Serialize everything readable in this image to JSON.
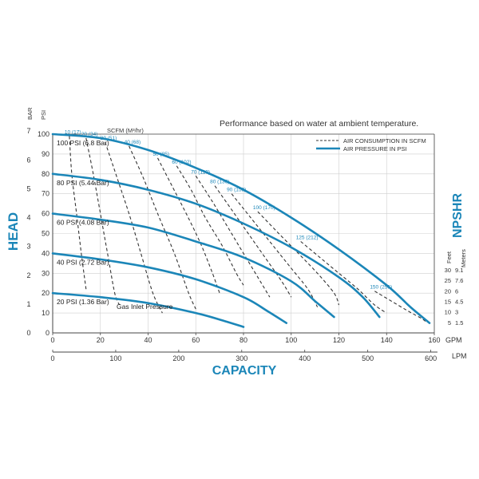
{
  "chart_data": {
    "type": "line",
    "note": "Performance based on water at ambient temperature.",
    "xlabel": "CAPACITY",
    "ylabel_left": "HEAD",
    "ylabel_right": "NPSHR",
    "scfm_label": "SCFM (M³/hr)",
    "x_gpm": {
      "unit": "GPM",
      "ticks": [
        "0",
        "20",
        "40",
        "60",
        "80",
        "100",
        "120",
        "140",
        "160"
      ],
      "range": [
        0,
        160
      ]
    },
    "x_lpm": {
      "unit": "LPM",
      "ticks": [
        "0",
        "100",
        "200",
        "300",
        "400",
        "500",
        "600"
      ],
      "range": [
        0,
        605.6
      ]
    },
    "y_psi": {
      "unit": "PSI",
      "ticks": [
        "0",
        "10",
        "20",
        "30",
        "40",
        "50",
        "60",
        "70",
        "80",
        "90",
        "100"
      ],
      "range": [
        0,
        100
      ]
    },
    "y_bar": {
      "unit": "BAR",
      "ticks": [
        "0",
        "1",
        "2",
        "3",
        "4",
        "5",
        "6",
        "7"
      ],
      "range": [
        0,
        6.895
      ]
    },
    "npshr": {
      "feet_label": "Feet",
      "meters_label": "Meters",
      "feet": [
        "5",
        "10",
        "15",
        "20",
        "25",
        "30"
      ],
      "meters": [
        "1.5",
        "3",
        "4.5",
        "6",
        "7.6",
        "9.1"
      ],
      "feet_range": [
        0,
        33
      ]
    },
    "legend": [
      {
        "label": "AIR CONSUMPTION IN SCFM",
        "style": "dashed"
      },
      {
        "label": "AIR PRESSURE IN PSI",
        "style": "solid"
      }
    ],
    "legend_position": "top-right",
    "series": [
      {
        "name": "100 PSI (6.8 Bar)",
        "x": [
          0,
          20,
          40,
          60,
          80,
          100,
          120,
          140,
          150,
          158
        ],
        "y": [
          100,
          98,
          92,
          83,
          72,
          58,
          42,
          24,
          13,
          5
        ]
      },
      {
        "name": "80 PSI (5.44 Bar)",
        "x": [
          0,
          20,
          40,
          60,
          80,
          100,
          120,
          130,
          137
        ],
        "y": [
          80,
          77,
          72,
          65,
          55,
          43,
          28,
          18,
          8
        ]
      },
      {
        "name": "60 PSI (4.08 Bar)",
        "x": [
          0,
          20,
          40,
          60,
          80,
          100,
          110,
          118
        ],
        "y": [
          60,
          57,
          53,
          46,
          38,
          26,
          16,
          8
        ]
      },
      {
        "name": "40 PSI (2.72 Bar)",
        "x": [
          0,
          20,
          40,
          60,
          80,
          90,
          98
        ],
        "y": [
          40,
          37,
          33,
          27,
          18,
          11,
          5
        ]
      },
      {
        "name": "20 PSI (1.36 Bar)",
        "x": [
          0,
          20,
          40,
          60,
          72,
          80
        ],
        "y": [
          20,
          18,
          15,
          10,
          6,
          3
        ]
      }
    ],
    "gas_inlet_label": "Gas Inlet Pressure",
    "air_consumption": [
      {
        "label": "10 (17)",
        "x": [
          7,
          8,
          10,
          12,
          14
        ],
        "y": [
          99,
          80,
          60,
          40,
          22
        ]
      },
      {
        "label": "20 (34)",
        "x": [
          14,
          17,
          20,
          23,
          26,
          28
        ],
        "y": [
          98,
          80,
          60,
          40,
          20,
          14
        ]
      },
      {
        "label": "30 (51)",
        "x": [
          22,
          27,
          32,
          37,
          42,
          46
        ],
        "y": [
          96,
          78,
          60,
          40,
          20,
          10
        ]
      },
      {
        "label": "40 (68)",
        "x": [
          32,
          38,
          44,
          51,
          57,
          60
        ],
        "y": [
          94,
          78,
          60,
          40,
          20,
          12
        ]
      },
      {
        "label": "50 (85)",
        "x": [
          44,
          50,
          56,
          62,
          67,
          70
        ],
        "y": [
          88,
          74,
          60,
          45,
          30,
          20
        ]
      },
      {
        "label": "60 (102)",
        "x": [
          52,
          58,
          64,
          71,
          77,
          80
        ],
        "y": [
          84,
          72,
          58,
          44,
          30,
          24
        ]
      },
      {
        "label": "70 (119)",
        "x": [
          60,
          67,
          74,
          81,
          88,
          91
        ],
        "y": [
          79,
          66,
          52,
          38,
          24,
          18
        ]
      },
      {
        "label": "80 (136)",
        "x": [
          68,
          75,
          82,
          89,
          96,
          100
        ],
        "y": [
          74,
          62,
          50,
          38,
          26,
          18
        ]
      },
      {
        "label": "90 (153)",
        "x": [
          75,
          83,
          91,
          99,
          107,
          111
        ],
        "y": [
          70,
          58,
          46,
          34,
          22,
          13
        ]
      },
      {
        "label": "100 (170)",
        "x": [
          86,
          94,
          103,
          111,
          118,
          120
        ],
        "y": [
          61,
          51,
          40,
          30,
          20,
          14
        ]
      },
      {
        "label": "125 (212)",
        "x": [
          104,
          112,
          120,
          128,
          135,
          140
        ],
        "y": [
          46,
          38,
          30,
          22,
          14,
          10
        ]
      },
      {
        "label": "150 (255)",
        "x": [
          135,
          142,
          149,
          155,
          157
        ],
        "y": [
          21,
          16,
          11,
          7,
          5
        ]
      }
    ]
  }
}
